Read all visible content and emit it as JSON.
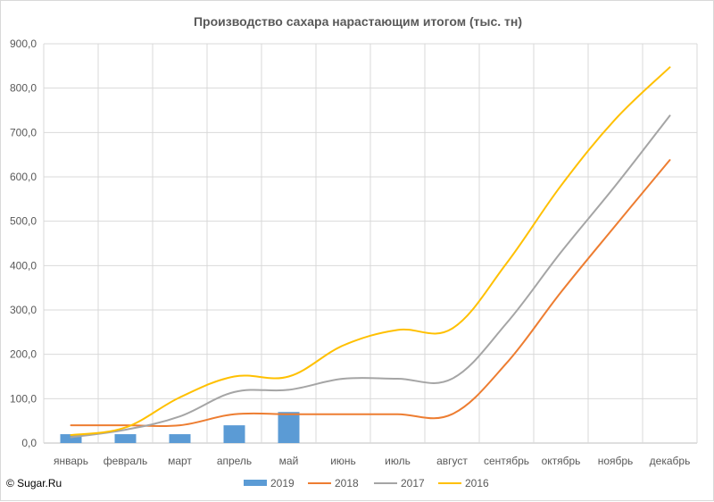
{
  "watermark": "© Sugar.Ru",
  "chart_data": {
    "type": "line",
    "title": "Производство сахара нарастающим итогом (тыс. тн)",
    "xlabel": "",
    "ylabel": "",
    "ylim": [
      0,
      900
    ],
    "yticks": [
      "0,0",
      "100,0",
      "200,0",
      "300,0",
      "400,0",
      "500,0",
      "600,0",
      "700,0",
      "800,0",
      "900,0"
    ],
    "categories": [
      "январь",
      "февраль",
      "март",
      "апрель",
      "май",
      "июнь",
      "июль",
      "август",
      "сентябрь",
      "октябрь",
      "ноябрь",
      "декабрь"
    ],
    "grid": true,
    "legend_position": "bottom",
    "series": [
      {
        "name": "2019",
        "kind": "bar",
        "color": "#5b9bd5",
        "values": [
          20,
          20,
          20,
          40,
          70,
          null,
          null,
          null,
          null,
          null,
          null,
          null
        ]
      },
      {
        "name": "2018",
        "kind": "line",
        "color": "#ed7d31",
        "values": [
          40,
          40,
          40,
          65,
          65,
          65,
          65,
          65,
          180,
          340,
          490,
          638
        ]
      },
      {
        "name": "2017",
        "kind": "line",
        "color": "#a5a5a5",
        "values": [
          13,
          30,
          60,
          115,
          120,
          145,
          145,
          145,
          270,
          430,
          580,
          738
        ]
      },
      {
        "name": "2016",
        "kind": "line",
        "color": "#ffc000",
        "values": [
          18,
          35,
          103,
          150,
          150,
          220,
          255,
          258,
          405,
          580,
          730,
          847
        ]
      }
    ]
  }
}
